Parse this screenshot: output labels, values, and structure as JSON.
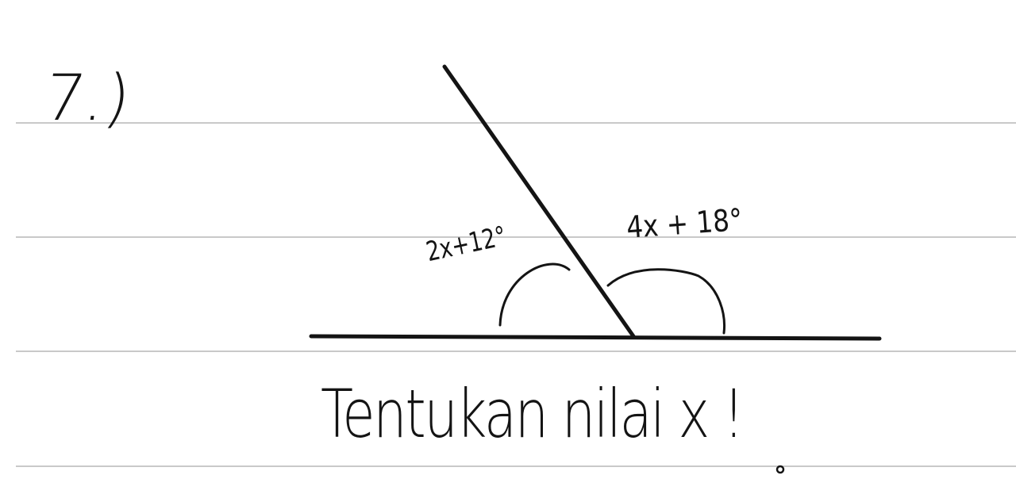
{
  "problem": {
    "number": "7.)",
    "angle_left_label": "2x+12°",
    "angle_right_label": "4x + 18°",
    "instruction": "Tentukan nilai x !"
  },
  "colors": {
    "ink": "#141414",
    "rule_line": "#c9c9c9",
    "paper": "#ffffff"
  }
}
